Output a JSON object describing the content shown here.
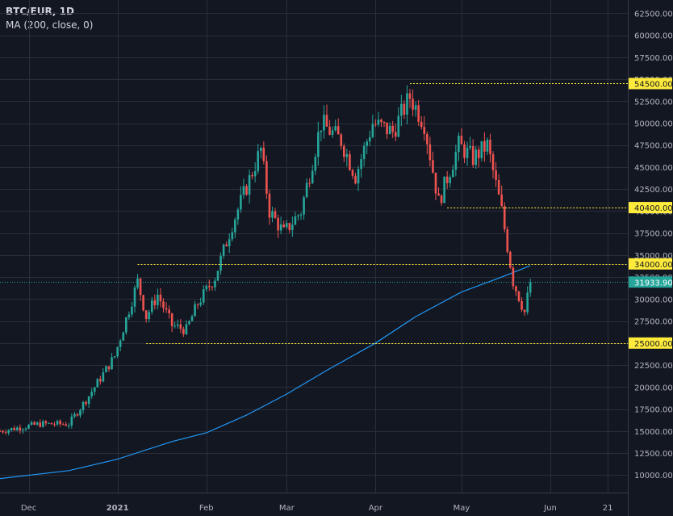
{
  "legend": {
    "symbol": "BTC/EUR, 1D",
    "indicator": "MA (200, close, 0)"
  },
  "colors": {
    "background": "#131722",
    "grid": "#2a2e39",
    "axis_text": "#b2b5be",
    "up": "#26a69a",
    "down": "#ef5350",
    "ma": "#2196f3",
    "level_line": "#ffeb3b",
    "current_price": "#26a69a"
  },
  "chart_data": {
    "type": "candlestick",
    "y_axis_position": "right",
    "ylim": [
      8000,
      64000
    ],
    "y_ticks": [
      10000,
      12500,
      15000,
      17500,
      20000,
      22500,
      25000,
      27500,
      30000,
      32500,
      35000,
      37500,
      40000,
      42500,
      45000,
      47500,
      50000,
      52500,
      55000,
      57500,
      60000,
      62500
    ],
    "y_tick_labels": [
      "10000.00",
      "12500.00",
      "15000.00",
      "17500.00",
      "20000.00",
      "22500.00",
      "25000.00",
      "27500.00",
      "30000.00",
      "32500.00",
      "35000.00",
      "37500.00",
      "40000.00",
      "42500.00",
      "45000.00",
      "47500.00",
      "50000.00",
      "52500.00",
      "55000.00",
      "57500.00",
      "60000.00",
      "62500.00"
    ],
    "x_range": [
      "2020-11-21",
      "2021-06-28"
    ],
    "x_ticks": [
      "2020-12-01",
      "2021-01-01",
      "2021-02-01",
      "2021-03-01",
      "2021-04-01",
      "2021-05-01",
      "2021-06-01",
      "2021-06-21"
    ],
    "x_tick_labels": [
      "Dec",
      "2021",
      "Feb",
      "Mar",
      "Apr",
      "May",
      "Jun",
      "21"
    ],
    "grid": true,
    "key_points": [
      {
        "date": "2020-11-21",
        "close": 15000
      },
      {
        "date": "2020-12-05",
        "close": 15800
      },
      {
        "date": "2020-12-15",
        "close": 15800
      },
      {
        "date": "2020-12-22",
        "close": 19000
      },
      {
        "date": "2020-12-31",
        "close": 23500
      },
      {
        "date": "2021-01-08",
        "close": 32000
      },
      {
        "date": "2021-01-11",
        "close": 28000
      },
      {
        "date": "2021-01-15",
        "close": 30500
      },
      {
        "date": "2021-01-20",
        "close": 27000
      },
      {
        "date": "2021-01-25",
        "close": 26500
      },
      {
        "date": "2021-01-29",
        "close": 29500
      },
      {
        "date": "2021-02-04",
        "close": 32500
      },
      {
        "date": "2021-02-10",
        "close": 38500
      },
      {
        "date": "2021-02-20",
        "close": 47000
      },
      {
        "date": "2021-02-23",
        "close": 40000
      },
      {
        "date": "2021-02-28",
        "close": 37500
      },
      {
        "date": "2021-03-06",
        "close": 40000
      },
      {
        "date": "2021-03-13",
        "close": 50000
      },
      {
        "date": "2021-03-20",
        "close": 48000
      },
      {
        "date": "2021-03-25",
        "close": 44000
      },
      {
        "date": "2021-03-31",
        "close": 50000
      },
      {
        "date": "2021-04-07",
        "close": 49000
      },
      {
        "date": "2021-04-13",
        "close": 53000
      },
      {
        "date": "2021-04-18",
        "close": 50000
      },
      {
        "date": "2021-04-23",
        "close": 41000
      },
      {
        "date": "2021-04-30",
        "close": 47500
      },
      {
        "date": "2021-05-05",
        "close": 46000
      },
      {
        "date": "2021-05-10",
        "close": 47500
      },
      {
        "date": "2021-05-15",
        "close": 40000
      },
      {
        "date": "2021-05-19",
        "close": 32000
      },
      {
        "date": "2021-05-23",
        "close": 28500
      },
      {
        "date": "2021-05-25",
        "close": 31934
      }
    ],
    "moving_average": [
      {
        "date": "2020-11-21",
        "value": 9600
      },
      {
        "date": "2020-12-15",
        "value": 10500
      },
      {
        "date": "2021-01-01",
        "value": 11800
      },
      {
        "date": "2021-01-20",
        "value": 13800
      },
      {
        "date": "2021-02-01",
        "value": 14800
      },
      {
        "date": "2021-02-15",
        "value": 16800
      },
      {
        "date": "2021-03-01",
        "value": 19200
      },
      {
        "date": "2021-03-15",
        "value": 21900
      },
      {
        "date": "2021-04-01",
        "value": 25000
      },
      {
        "date": "2021-04-15",
        "value": 28000
      },
      {
        "date": "2021-05-01",
        "value": 30800
      },
      {
        "date": "2021-05-15",
        "value": 32500
      },
      {
        "date": "2021-05-25",
        "value": 33800
      }
    ],
    "levels": [
      {
        "value": 54500,
        "label": "54500.00",
        "from": "2021-04-13"
      },
      {
        "value": 40400,
        "label": "40400.00",
        "from": "2021-04-26"
      },
      {
        "value": 34000,
        "label": "34000.00",
        "from": "2021-01-08"
      },
      {
        "value": 25000,
        "label": "25000.00",
        "from": "2021-01-11"
      }
    ],
    "current_price": {
      "value": 31933.9,
      "label": "31933.90"
    }
  }
}
